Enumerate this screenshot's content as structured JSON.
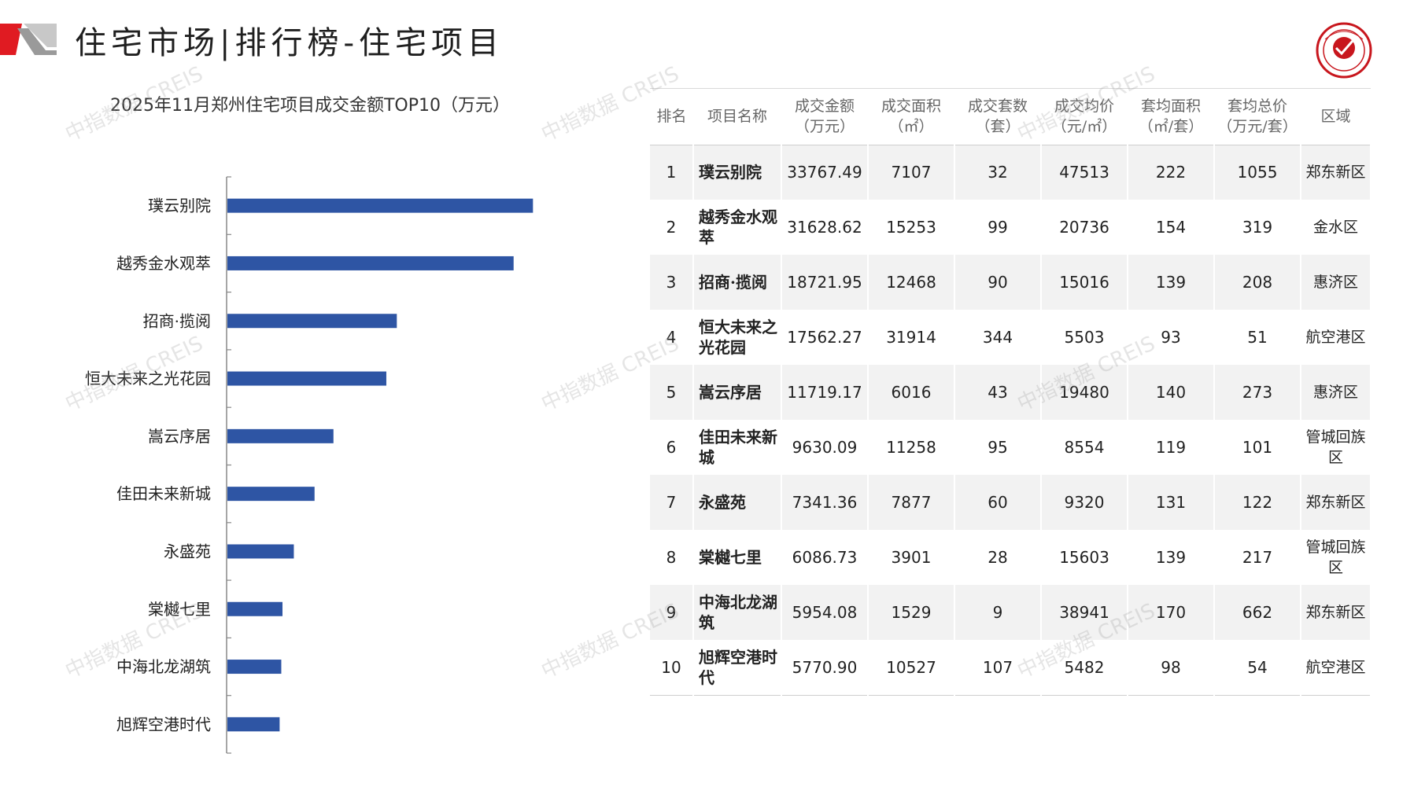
{
  "header": {
    "title": "住宅市场|排行榜-住宅项目",
    "accent_color": "#e01b22",
    "mark_gray": "#8c8c8c"
  },
  "watermark": "中指数据 CREIS",
  "chart_data": {
    "type": "bar",
    "orientation": "horizontal",
    "title": "2025年11月郑州住宅项目成交金额TOP10（万元）",
    "categories": [
      "璞云别院",
      "越秀金水观萃",
      "招商·揽阅",
      "恒大未来之光花园",
      "嵩云序居",
      "佳田未来新城",
      "永盛苑",
      "棠樾七里",
      "中海北龙湖筑",
      "旭辉空港时代"
    ],
    "values": [
      33767.49,
      31628.62,
      18721.95,
      17562.27,
      11719.17,
      9630.09,
      7341.36,
      6086.73,
      5954.08,
      5770.9
    ],
    "bar_color": "#2e55a4",
    "xlim": [
      0,
      40000
    ],
    "grid": false,
    "legend": "none"
  },
  "table": {
    "headers": [
      [
        "排名"
      ],
      [
        "项目名称"
      ],
      [
        "成交金额",
        "（万元）"
      ],
      [
        "成交面积",
        "（㎡）"
      ],
      [
        "成交套数",
        "（套）"
      ],
      [
        "成交均价",
        "（元/㎡）"
      ],
      [
        "套均面积",
        "（㎡/套）"
      ],
      [
        "套均总价",
        "（万元/套）"
      ],
      [
        "区域"
      ]
    ],
    "rows": [
      [
        "1",
        "璞云别院",
        "33767.49",
        "7107",
        "32",
        "47513",
        "222",
        "1055",
        "郑东新区"
      ],
      [
        "2",
        "越秀金水观萃",
        "31628.62",
        "15253",
        "99",
        "20736",
        "154",
        "319",
        "金水区"
      ],
      [
        "3",
        "招商·揽阅",
        "18721.95",
        "12468",
        "90",
        "15016",
        "139",
        "208",
        "惠济区"
      ],
      [
        "4",
        "恒大未来之光花园",
        "17562.27",
        "31914",
        "344",
        "5503",
        "93",
        "51",
        "航空港区"
      ],
      [
        "5",
        "嵩云序居",
        "11719.17",
        "6016",
        "43",
        "19480",
        "140",
        "273",
        "惠济区"
      ],
      [
        "6",
        "佳田未来新城",
        "9630.09",
        "11258",
        "95",
        "8554",
        "119",
        "101",
        "管城回族区"
      ],
      [
        "7",
        "永盛苑",
        "7341.36",
        "7877",
        "60",
        "9320",
        "131",
        "122",
        "郑东新区"
      ],
      [
        "8",
        "棠樾七里",
        "6086.73",
        "3901",
        "28",
        "15603",
        "139",
        "217",
        "管城回族区"
      ],
      [
        "9",
        "中海北龙湖筑",
        "5954.08",
        "1529",
        "9",
        "38941",
        "170",
        "662",
        "郑东新区"
      ],
      [
        "10",
        "旭辉空港时代",
        "5770.90",
        "10527",
        "107",
        "5482",
        "98",
        "54",
        "航空港区"
      ]
    ]
  }
}
